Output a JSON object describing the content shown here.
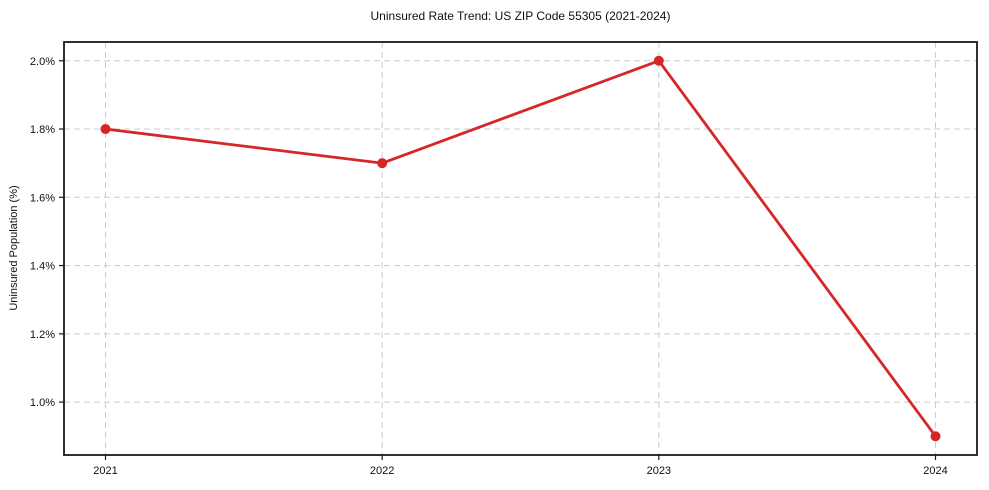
{
  "chart_data": {
    "type": "line",
    "title": "Uninsured Rate Trend: US ZIP Code 55305 (2021-2024)",
    "xlabel": "",
    "ylabel": "Uninsured Population (%)",
    "x": [
      2021,
      2022,
      2023,
      2024
    ],
    "x_tick_labels": [
      "2021",
      "2022",
      "2023",
      "2024"
    ],
    "series": [
      {
        "name": "Uninsured Population (%)",
        "values": [
          1.8,
          1.7,
          2.0,
          0.9
        ]
      }
    ],
    "y_ticks": [
      1.0,
      1.2,
      1.4,
      1.6,
      1.8,
      2.0
    ],
    "y_tick_labels": [
      "1.0%",
      "1.2%",
      "1.4%",
      "1.6%",
      "1.8%",
      "2.0%"
    ],
    "xlim": [
      2020.85,
      2024.15
    ],
    "ylim": [
      0.845,
      2.055
    ],
    "grid": true,
    "grid_style": "dashed",
    "legend_position": "none",
    "marker": "circle",
    "colors": {
      "line": "#d62728",
      "marker": "#d62728",
      "grid": "#cccccc",
      "axis": "#1a1a1a",
      "text": "#111111",
      "background": "#ffffff"
    }
  }
}
